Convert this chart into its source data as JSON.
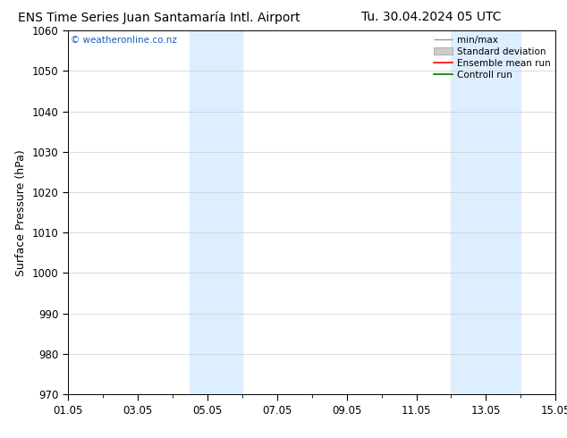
{
  "title_left": "ENS Time Series Juan Santamaría Intl. Airport",
  "title_right": "Tu. 30.04.2024 05 UTC",
  "ylabel": "Surface Pressure (hPa)",
  "ylim": [
    970,
    1060
  ],
  "yticks": [
    970,
    980,
    990,
    1000,
    1010,
    1020,
    1030,
    1040,
    1050,
    1060
  ],
  "xtick_labels": [
    "01.05",
    "03.05",
    "05.05",
    "07.05",
    "09.05",
    "11.05",
    "13.05",
    "15.05"
  ],
  "xtick_positions": [
    0,
    2,
    4,
    6,
    8,
    10,
    12,
    14
  ],
  "xlim": [
    0,
    14
  ],
  "shaded_bands": [
    {
      "x_start": 3.5,
      "x_end": 5.0,
      "color": "#ddeeff"
    },
    {
      "x_start": 11.0,
      "x_end": 13.0,
      "color": "#ddeeff"
    }
  ],
  "watermark": "© weatheronline.co.nz",
  "watermark_color": "#1a5fb4",
  "background_color": "#ffffff",
  "legend_entries": [
    {
      "label": "min/max",
      "color": "#999999",
      "style": "minmax"
    },
    {
      "label": "Standard deviation",
      "color": "#cccccc",
      "style": "band"
    },
    {
      "label": "Ensemble mean run",
      "color": "#ff0000",
      "style": "line"
    },
    {
      "label": "Controll run",
      "color": "#007700",
      "style": "line"
    }
  ],
  "title_fontsize": 10,
  "axis_label_fontsize": 9,
  "tick_fontsize": 8.5,
  "legend_fontsize": 7.5
}
